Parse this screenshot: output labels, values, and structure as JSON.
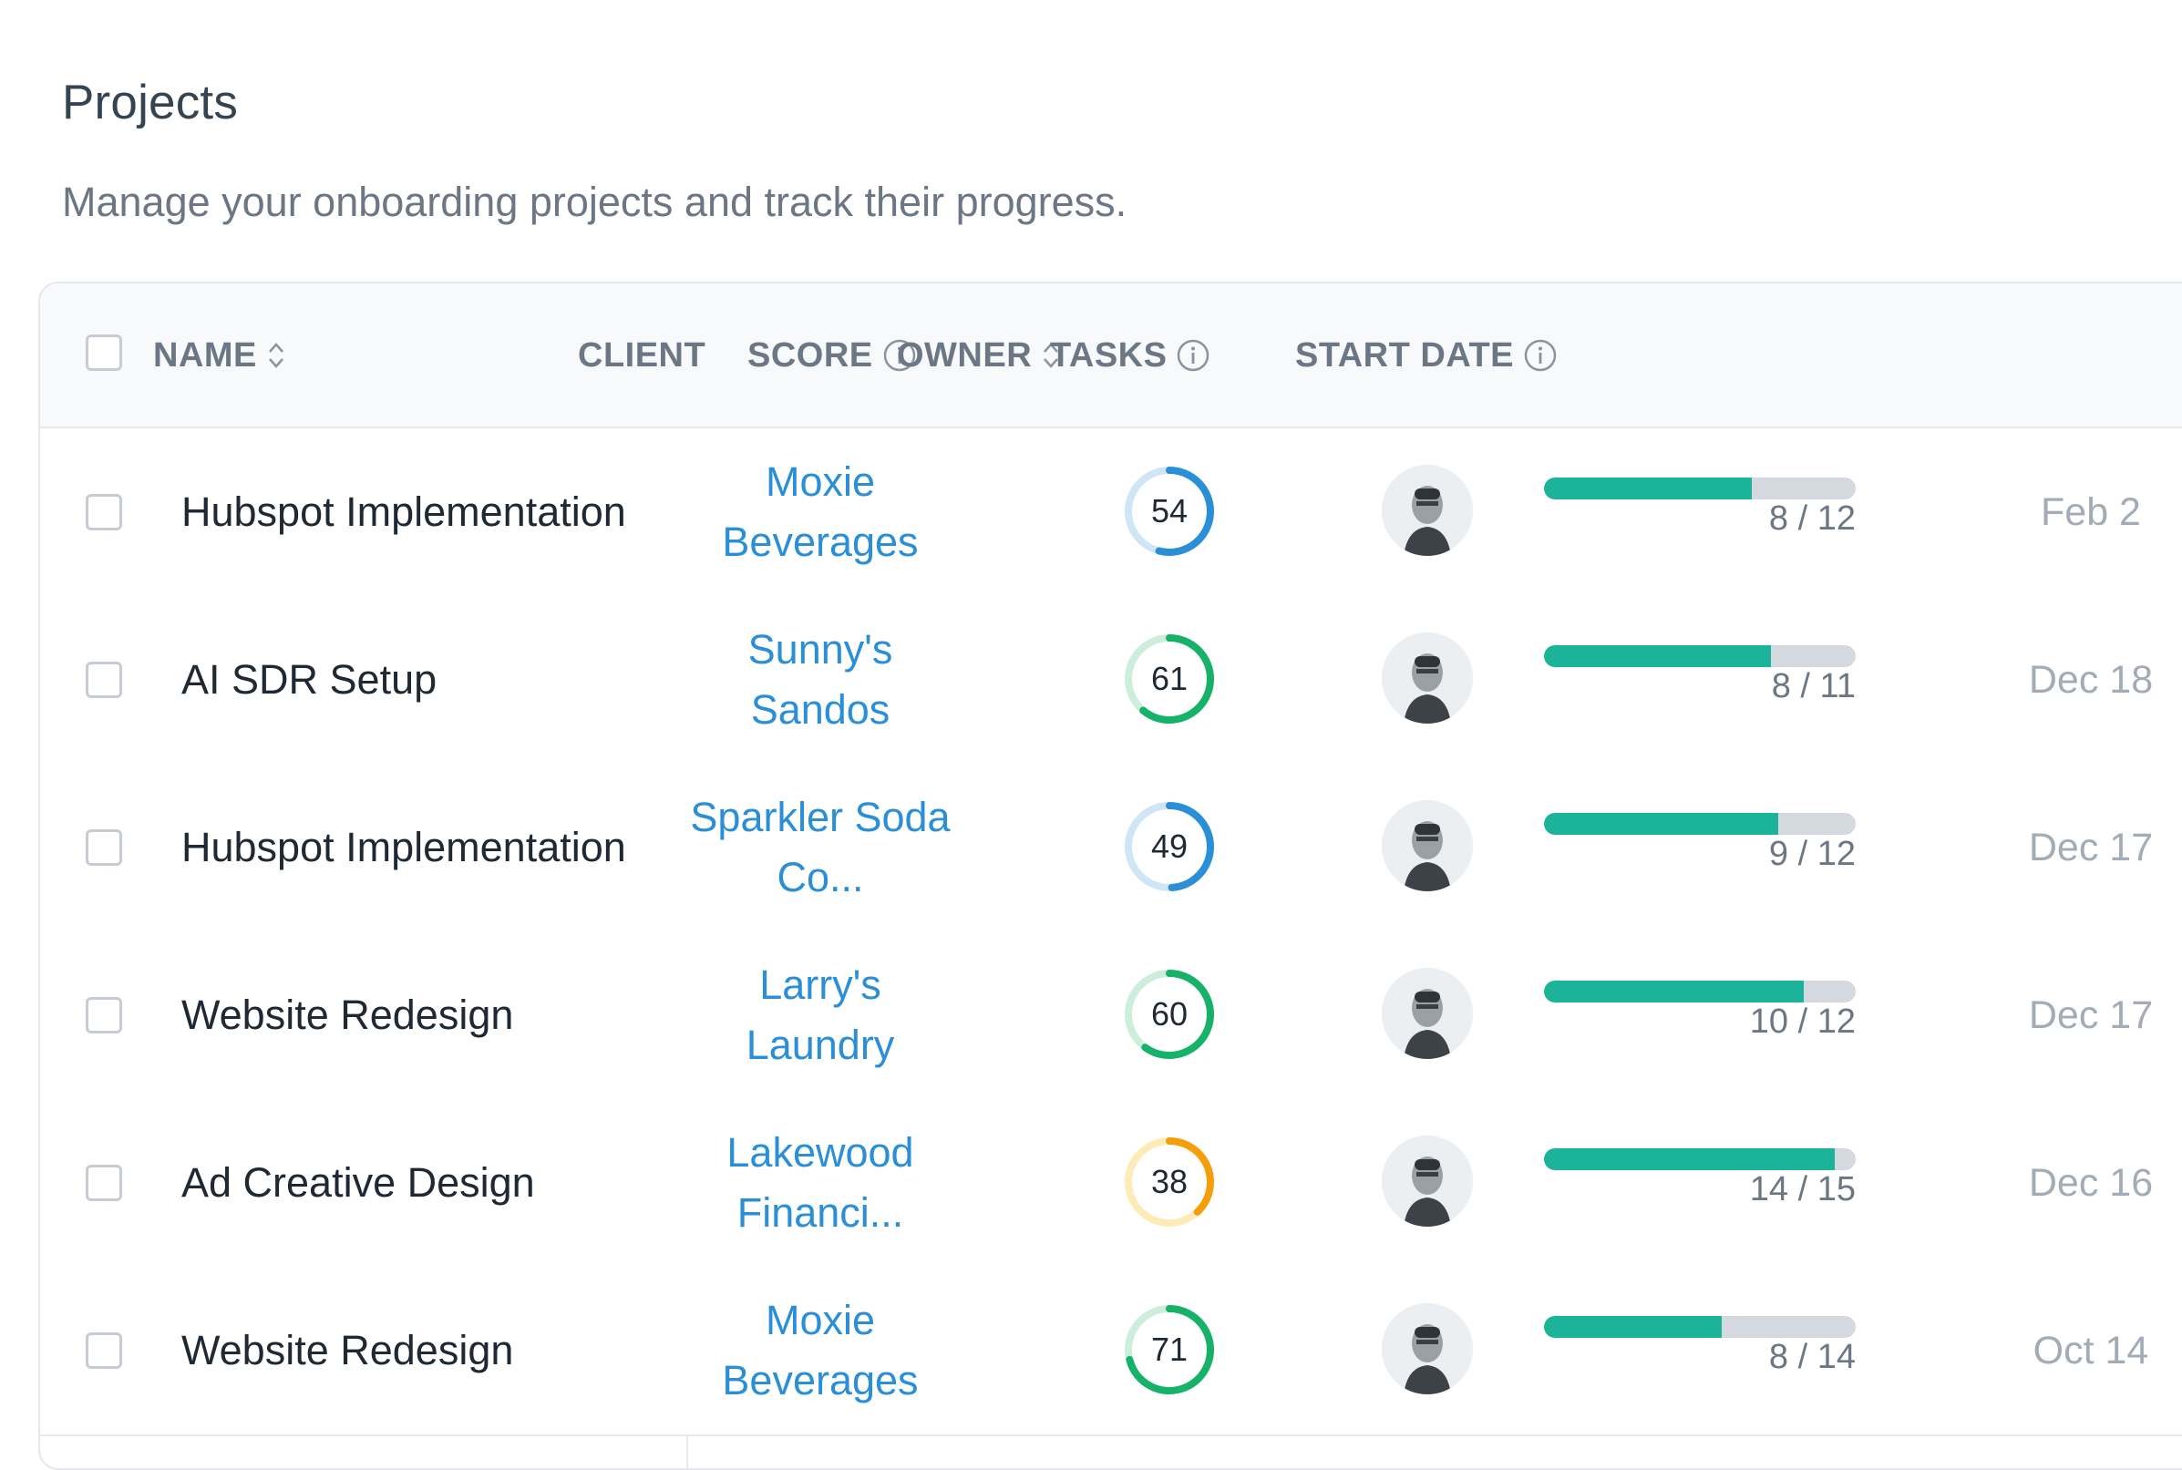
{
  "page": {
    "title": "Projects",
    "subtitle": "Manage your onboarding projects and track their progress."
  },
  "table": {
    "columns": {
      "name": "NAME",
      "client": "CLIENT",
      "score": "SCORE",
      "owner": "OWNER",
      "tasks": "TASKS",
      "start_date": "START DATE"
    },
    "rows": [
      {
        "name": "Hubspot Implementation",
        "client": "Moxie Beverages",
        "score": 54,
        "score_color": "#2a8fd6",
        "score_track": "#cfe6f7",
        "tasks_done": 8,
        "tasks_total": 12,
        "tasks_label": "8 / 12",
        "start_date": "Feb 2"
      },
      {
        "name": "AI SDR Setup",
        "client": "Sunny's Sandos",
        "score": 61,
        "score_color": "#17b26a",
        "score_track": "#cdeedb",
        "tasks_done": 8,
        "tasks_total": 11,
        "tasks_label": "8 / 11",
        "start_date": "Dec 18"
      },
      {
        "name": "Hubspot Implementation",
        "client": "Sparkler Soda Co...",
        "score": 49,
        "score_color": "#2a8fd6",
        "score_track": "#cfe6f7",
        "tasks_done": 9,
        "tasks_total": 12,
        "tasks_label": "9 / 12",
        "start_date": "Dec 17"
      },
      {
        "name": "Website Redesign",
        "client": "Larry's Laundry",
        "score": 60,
        "score_color": "#17b26a",
        "score_track": "#cdeedb",
        "tasks_done": 10,
        "tasks_total": 12,
        "tasks_label": "10 / 12",
        "start_date": "Dec 17"
      },
      {
        "name": "Ad Creative Design",
        "client": "Lakewood Financi...",
        "score": 38,
        "score_color": "#f59e0b",
        "score_track": "#fdebb8",
        "tasks_done": 14,
        "tasks_total": 15,
        "tasks_label": "14 / 15",
        "start_date": "Dec 16"
      },
      {
        "name": "Website Redesign",
        "client": "Moxie Beverages",
        "score": 71,
        "score_color": "#17b26a",
        "score_track": "#cdeedb",
        "tasks_done": 8,
        "tasks_total": 14,
        "tasks_label": "8 / 14",
        "start_date": "Oct 14"
      }
    ]
  },
  "colors": {
    "accent_link": "#2a8fd6",
    "progress_fill": "#1bb39a",
    "progress_track": "#d3d9df"
  },
  "icons": {
    "sort": "sort-icon",
    "info": "info-icon",
    "avatar": "user-avatar"
  }
}
